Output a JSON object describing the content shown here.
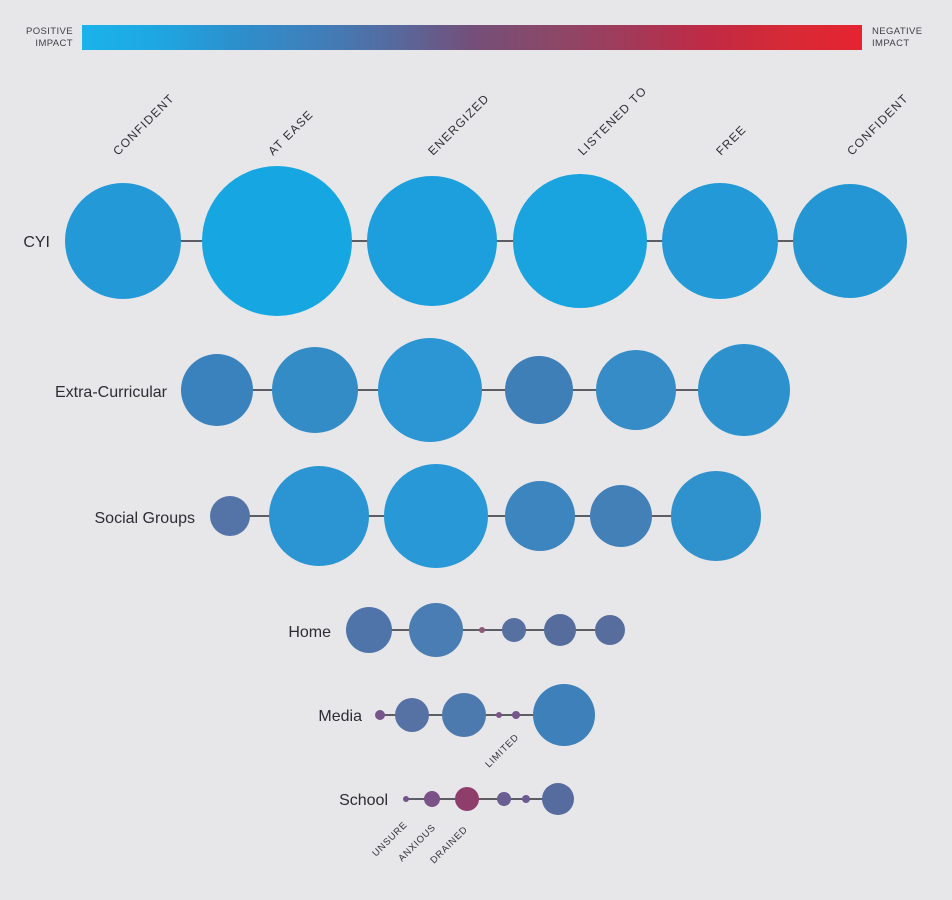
{
  "legend": {
    "positive_label": [
      "POSITIVE",
      "IMPACT"
    ],
    "negative_label": [
      "NEGATIVE",
      "IMPACT"
    ],
    "gradient_colors": [
      "#1ab3ea",
      "#1fa6e1",
      "#2d8fcc",
      "#3f7fbb",
      "#566a9e",
      "#744f7a",
      "#8b4868",
      "#a23a5a",
      "#c02a44",
      "#d62a36",
      "#e52430"
    ]
  },
  "chart_data": {
    "type": "bubble",
    "title": "",
    "description_note": "Bubble size and color encode magnitude and direction of impact",
    "columns": [
      "CONFIDENT",
      "AT EASE",
      "ENERGIZED",
      "LISTENED TO",
      "FREE",
      "CONFIDENT"
    ],
    "rows": [
      {
        "name": "CYI",
        "bubbles": [
          {
            "size": 58,
            "color": "#2499d8"
          },
          {
            "size": 75,
            "color": "#16a7e3"
          },
          {
            "size": 65,
            "color": "#1c9fdc"
          },
          {
            "size": 67,
            "color": "#19a3df"
          },
          {
            "size": 58,
            "color": "#2399d8"
          },
          {
            "size": 57,
            "color": "#2496d3"
          }
        ]
      },
      {
        "name": "Extra-Curricular",
        "bubbles": [
          {
            "size": 36,
            "color": "#3a82bd"
          },
          {
            "size": 43,
            "color": "#338cc6"
          },
          {
            "size": 52,
            "color": "#2b96d3"
          },
          {
            "size": 34,
            "color": "#3e7fb8"
          },
          {
            "size": 40,
            "color": "#368cc6"
          },
          {
            "size": 46,
            "color": "#2d91cd"
          }
        ]
      },
      {
        "name": "Social Groups",
        "bubbles": [
          {
            "size": 20,
            "color": "#5474a8"
          },
          {
            "size": 50,
            "color": "#2a95d2"
          },
          {
            "size": 52,
            "color": "#2899d6"
          },
          {
            "size": 35,
            "color": "#3d85bf"
          },
          {
            "size": 31,
            "color": "#4380b8"
          },
          {
            "size": 45,
            "color": "#2f92cd"
          }
        ]
      },
      {
        "name": "Home",
        "bubbles": [
          {
            "size": 23,
            "color": "#4e74aa"
          },
          {
            "size": 27,
            "color": "#4a7db3"
          },
          {
            "size": 3,
            "color": "#8b5878"
          },
          {
            "size": 12,
            "color": "#56709f"
          },
          {
            "size": 16,
            "color": "#566c9c"
          },
          {
            "size": 15,
            "color": "#566d9d"
          }
        ]
      },
      {
        "name": "Media",
        "bubbles": [
          {
            "size": 5,
            "color": "#77558a"
          },
          {
            "size": 17,
            "color": "#5671a4"
          },
          {
            "size": 22,
            "color": "#4c79ae"
          },
          {
            "size": 3,
            "color": "#7b548a"
          },
          {
            "size": 4,
            "color": "#77568b"
          },
          {
            "size": 31,
            "color": "#3d80ba"
          }
        ]
      },
      {
        "name": "School",
        "bubbles": [
          {
            "size": 3,
            "color": "#755489"
          },
          {
            "size": 8,
            "color": "#7a5287"
          },
          {
            "size": 12,
            "color": "#8f3e6c"
          },
          {
            "size": 7,
            "color": "#6a5e92"
          },
          {
            "size": 4,
            "color": "#6d5a90"
          },
          {
            "size": 16,
            "color": "#566c9f"
          }
        ]
      }
    ],
    "annotations": [
      "UNSURE",
      "ANXIOUS",
      "DRAINED",
      "LIMITED"
    ]
  }
}
